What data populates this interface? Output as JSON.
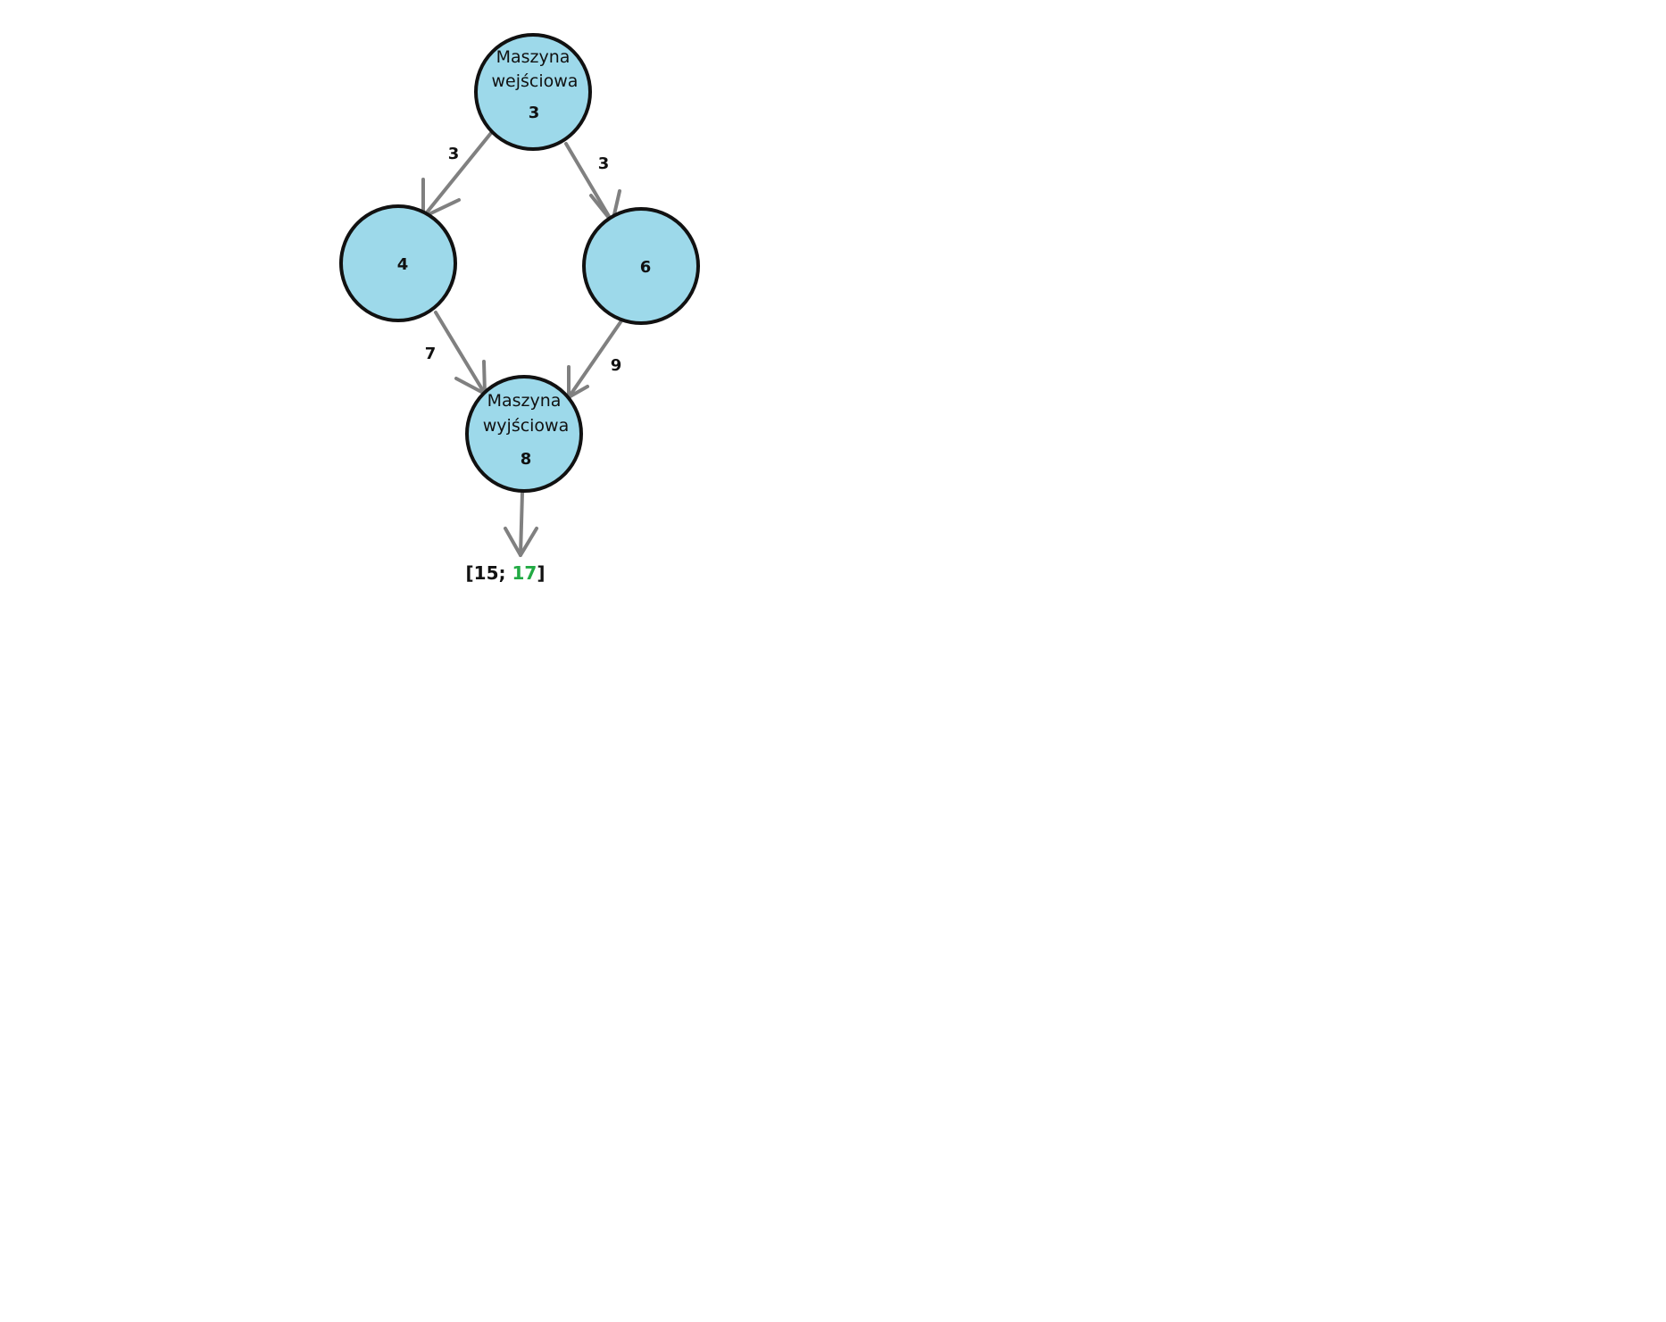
{
  "colors": {
    "node_fill": "#9dd9ea",
    "node_stroke": "#111111",
    "edge": "#808080",
    "highlight": "#22aa44"
  },
  "nodes": [
    {
      "id": "input",
      "label_lines": [
        "Maszyna",
        "wejściowa"
      ],
      "value": "3"
    },
    {
      "id": "left",
      "label_lines": [],
      "value": "4"
    },
    {
      "id": "right",
      "label_lines": [],
      "value": "6"
    },
    {
      "id": "output",
      "label_lines": [
        "Maszyna",
        "wyjściowa"
      ],
      "value": "8"
    }
  ],
  "edges": [
    {
      "from": "input",
      "to": "left",
      "weight": "3"
    },
    {
      "from": "input",
      "to": "right",
      "weight": "3"
    },
    {
      "from": "left",
      "to": "output",
      "weight": "7"
    },
    {
      "from": "right",
      "to": "output",
      "weight": "9"
    }
  ],
  "result": {
    "open": "[",
    "first": "15",
    "separator": "; ",
    "second": "17",
    "close": "]"
  }
}
